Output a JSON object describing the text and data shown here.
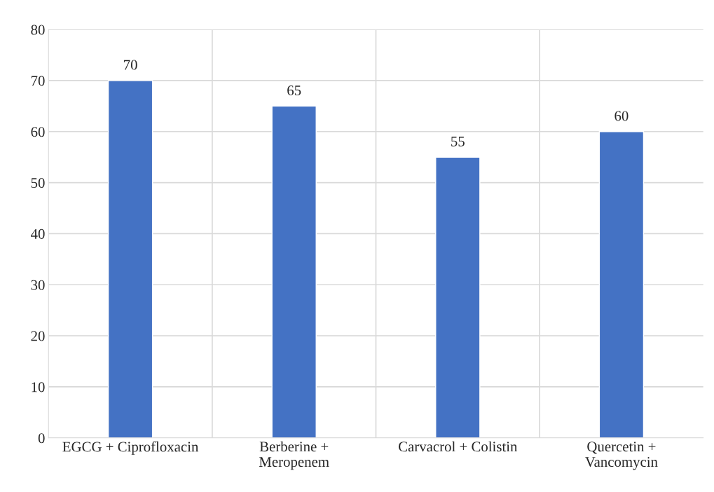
{
  "chart_data": {
    "type": "bar",
    "categories": [
      "EGCG + Ciprofloxacin",
      "Berberine +\nMeropenem",
      "Carvacrol + Colistin",
      "Quercetin +\nVancomycin"
    ],
    "values": [
      70,
      65,
      55,
      60
    ],
    "color": "#4472c4",
    "ylim": [
      0,
      80
    ],
    "yticks": [
      0,
      10,
      20,
      30,
      40,
      50,
      60,
      70,
      80
    ],
    "grid": "y",
    "data_labels": true
  }
}
